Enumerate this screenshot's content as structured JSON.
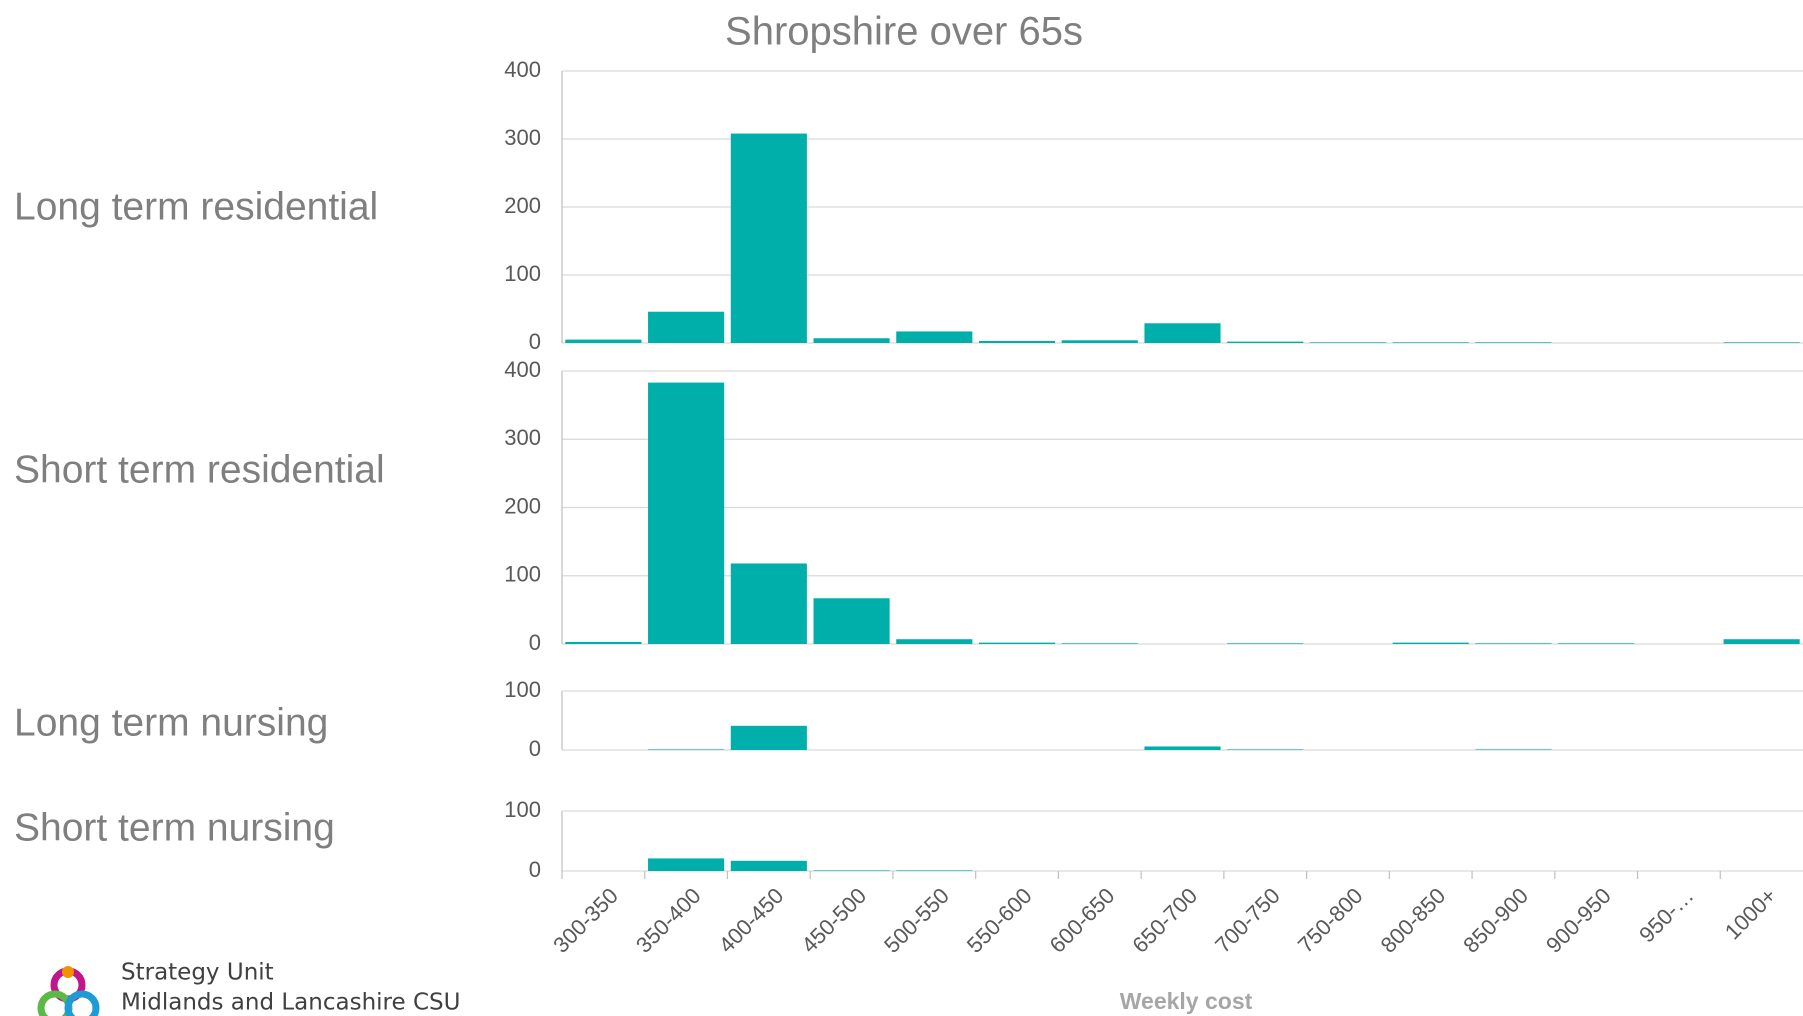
{
  "title": "Shropshire over 65s",
  "xlabel": "Weekly cost",
  "footer": [
    "Strategy Unit",
    "Midlands and Lancashire CSU"
  ],
  "chart_data": [
    {
      "type": "bar",
      "title": "Long term residential",
      "categories": [
        "300-350",
        "350-400",
        "400-450",
        "450-500",
        "500-550",
        "550-600",
        "600-650",
        "650-700",
        "700-750",
        "750-800",
        "800-850",
        "850-900",
        "900-950",
        "950-…",
        "1000+"
      ],
      "values": [
        5,
        46,
        308,
        7,
        17,
        3,
        4,
        29,
        2,
        1,
        1,
        1,
        0,
        0,
        1
      ],
      "color": "#00afaa",
      "ylim": [
        0,
        400
      ],
      "yticks": [
        0,
        100,
        200,
        300,
        400
      ],
      "grid": true
    },
    {
      "type": "bar",
      "title": "Short term residential",
      "categories": [
        "300-350",
        "350-400",
        "400-450",
        "450-500",
        "500-550",
        "550-600",
        "600-650",
        "650-700",
        "700-750",
        "750-800",
        "800-850",
        "850-900",
        "900-950",
        "950-…",
        "1000+"
      ],
      "values": [
        3,
        383,
        118,
        67,
        7,
        2,
        1,
        0,
        1,
        0,
        2,
        1,
        1,
        0,
        7
      ],
      "color": "#00afaa",
      "ylim": [
        0,
        400
      ],
      "yticks": [
        0,
        100,
        200,
        300,
        400
      ],
      "grid": true
    },
    {
      "type": "bar",
      "title": "Long term nursing",
      "categories": [
        "300-350",
        "350-400",
        "400-450",
        "450-500",
        "500-550",
        "550-600",
        "600-650",
        "650-700",
        "700-750",
        "750-800",
        "800-850",
        "850-900",
        "900-950",
        "950-…",
        "1000+"
      ],
      "values": [
        0,
        1,
        41,
        0,
        0,
        0,
        0,
        6,
        1,
        0,
        0,
        1,
        0,
        0,
        0
      ],
      "color": "#00afaa",
      "ylim": [
        0,
        100
      ],
      "yticks": [
        0,
        100
      ],
      "grid": true
    },
    {
      "type": "bar",
      "title": "Short term nursing",
      "categories": [
        "300-350",
        "350-400",
        "400-450",
        "450-500",
        "500-550",
        "550-600",
        "600-650",
        "650-700",
        "700-750",
        "750-800",
        "800-850",
        "850-900",
        "900-950",
        "950-…",
        "1000+"
      ],
      "values": [
        0,
        21,
        17,
        1,
        1,
        0,
        0,
        0,
        0,
        0,
        0,
        0,
        0,
        0,
        0
      ],
      "color": "#00afaa",
      "ylim": [
        0,
        100
      ],
      "yticks": [
        0,
        100
      ],
      "grid": true
    }
  ]
}
